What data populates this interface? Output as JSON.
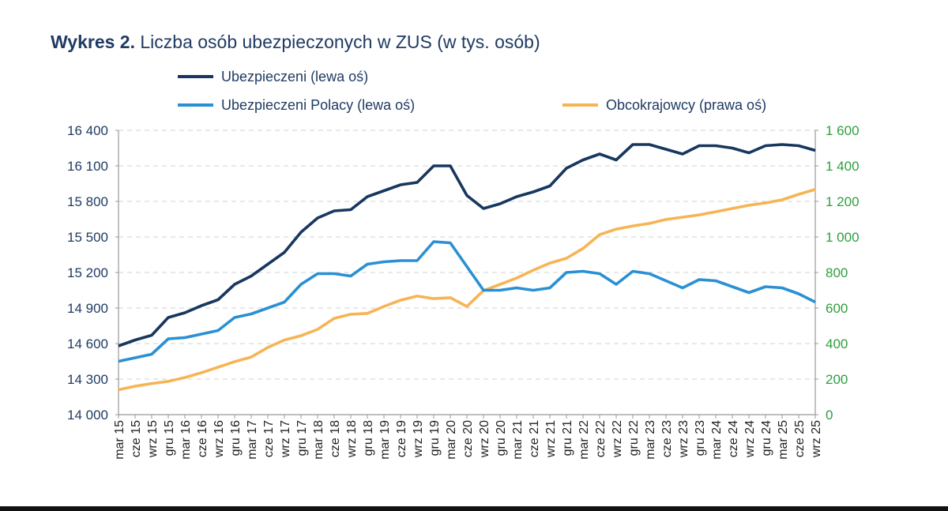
{
  "title": {
    "prefix": "Wykres 2.",
    "text": " Liczba osób ubezpieczonych w ZUS (w tys. osób)"
  },
  "colors": {
    "ubezpieczeni": "#17375e",
    "polacy": "#2a90d4",
    "obcokrajowcy": "#f6b455",
    "left_axis": "#1f3b63",
    "right_axis": "#2e9e3e"
  },
  "chart_data": {
    "type": "line",
    "title": "Liczba osób ubezpieczonych w ZUS (w tys. osób)",
    "legend_placement": "top",
    "grid": true,
    "y_left": {
      "lim": [
        14000,
        16400
      ],
      "ticks": [
        "14 000",
        "14 300",
        "14 600",
        "14 900",
        "15 200",
        "15 500",
        "15 800",
        "16 100",
        "16 400"
      ]
    },
    "y_right": {
      "lim": [
        0,
        1600
      ],
      "ticks": [
        "0",
        "200",
        "400",
        "600",
        "800",
        "1 000",
        "1 200",
        "1 400",
        "1 600"
      ]
    },
    "categories": [
      "mar 15",
      "cze 15",
      "wrz 15",
      "gru 15",
      "mar 16",
      "cze 16",
      "wrz 16",
      "gru 16",
      "mar 17",
      "cze 17",
      "wrz 17",
      "gru 17",
      "mar 18",
      "cze 18",
      "wrz 18",
      "gru 18",
      "mar 19",
      "cze 19",
      "wrz 19",
      "gru 19",
      "mar 20",
      "cze 20",
      "wrz 20",
      "gru 20",
      "mar 21",
      "cze 21",
      "wrz 21",
      "gru 21",
      "mar 22",
      "cze 22",
      "wrz 22",
      "gru 22",
      "mar 23",
      "cze 23",
      "wrz 23",
      "gru 23",
      "mar 24",
      "cze 24",
      "wrz 24",
      "gru 24",
      "mar 25",
      "cze 25",
      "wrz 25"
    ],
    "series": [
      {
        "name": "Ubezpieczeni (lewa oś)",
        "axis": "left",
        "values": [
          14580,
          14630,
          14670,
          14820,
          14860,
          14920,
          14970,
          15100,
          15170,
          15270,
          15370,
          15540,
          15660,
          15720,
          15730,
          15840,
          15890,
          15940,
          15960,
          16100,
          16100,
          15850,
          15740,
          15780,
          15840,
          15880,
          15930,
          16080,
          16150,
          16200,
          16150,
          16280,
          16280,
          16240,
          16200,
          16270,
          16270,
          16250,
          16210,
          16270,
          16280,
          16270,
          16230
        ]
      },
      {
        "name": "Ubezpieczeni Polacy (lewa oś)",
        "axis": "left",
        "values": [
          14450,
          14480,
          14510,
          14640,
          14650,
          14680,
          14710,
          14820,
          14850,
          14900,
          14950,
          15100,
          15190,
          15190,
          15170,
          15270,
          15290,
          15300,
          15300,
          15460,
          15450,
          15250,
          15050,
          15050,
          15070,
          15050,
          15070,
          15200,
          15210,
          15190,
          15100,
          15210,
          15190,
          15130,
          15070,
          15140,
          15130,
          15080,
          15030,
          15080,
          15070,
          15020,
          14950
        ]
      },
      {
        "name": "Obcokrajowcy (prawa oś)",
        "axis": "right",
        "values": [
          140,
          160,
          175,
          187,
          209,
          236,
          267,
          298,
          324,
          378,
          420,
          444,
          480,
          542,
          565,
          570,
          609,
          644,
          667,
          653,
          658,
          609,
          698,
          733,
          769,
          813,
          853,
          880,
          935,
          1013,
          1044,
          1062,
          1076,
          1098,
          1111,
          1124,
          1142,
          1160,
          1178,
          1191,
          1209,
          1240,
          1267
        ]
      }
    ]
  }
}
